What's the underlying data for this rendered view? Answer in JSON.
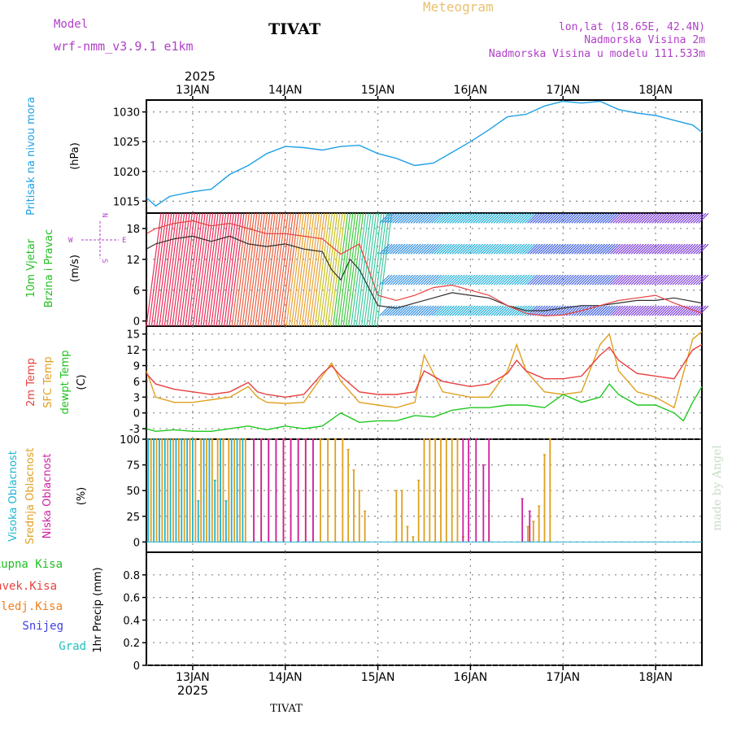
{
  "header": {
    "model_label": "Model",
    "model_name": "wrf-nmm_v3.9.1  e1km",
    "station": "TIVAT",
    "meteogram_label": "Meteogram",
    "lonlat": "lon,lat (18.65E, 42.4N)",
    "elevation": "Nadmorska Visina 2m",
    "model_elevation": "Nadmorska Visina u modelu 111.533m",
    "footer_station": "TIVAT",
    "signature": "made by Angel"
  },
  "colors": {
    "pressure": "#1ea0e6",
    "temp_2m": "#e84040",
    "temp_sfc": "#e0a020",
    "temp_dew": "#20c820",
    "cloud_high": "#20b4d0",
    "cloud_mid": "#e0a020",
    "cloud_low": "#d020a0",
    "grid": "#888888"
  },
  "time_axis": {
    "top_year": "2025",
    "bottom_year": "2025",
    "day_labels": [
      "13JAN",
      "14JAN",
      "15JAN",
      "16JAN",
      "17JAN",
      "18JAN"
    ],
    "x_range_days": [
      12.5,
      18.5
    ]
  },
  "panels": {
    "pressure": {
      "title": "Pritisak na nivou mora",
      "unit": "(hPa)",
      "ticks": [
        "1015",
        "1020",
        "1025",
        "1030"
      ]
    },
    "wind": {
      "title1": "10m Vjetar",
      "title2": "Brzina i Pravac",
      "unit": "(m/s)",
      "ticks": [
        "0",
        "6",
        "12",
        "18"
      ],
      "compass_n": "N",
      "compass_s": "S",
      "compass_w": "W",
      "compass_e": "E"
    },
    "temp": {
      "title1": "2m Temp",
      "title2": "SFC Temp",
      "title3": "dewpt Temp",
      "unit": "(C)",
      "ticks": [
        "-3",
        "0",
        "3",
        "6",
        "9",
        "12",
        "15"
      ]
    },
    "cloud": {
      "title1": "Visoka Oblacnost",
      "title2": "Srednja Oblacnost",
      "title3": "Niska Oblacnost",
      "unit": "(%)",
      "ticks": [
        "0",
        "25",
        "50",
        "75",
        "100"
      ]
    },
    "precip": {
      "unit": "1hr Precip (mm)",
      "ticks": [
        "0",
        "0.2",
        "0.4",
        "0.6",
        "0.8"
      ],
      "legend": [
        "Ukupna Kisa",
        "Konvek.Kisa",
        "Zaledj.Kisa",
        "Snijeg",
        "Grad"
      ],
      "legend_colors": [
        "#20c020",
        "#e84040",
        "#f08020",
        "#4040e0",
        "#20c0c0"
      ]
    }
  },
  "chart_data": [
    {
      "type": "line",
      "title": "Pritisak na nivou mora",
      "ylabel": "(hPa)",
      "ylim": [
        1013,
        1032
      ],
      "x_unit": "day of January 2025",
      "series": [
        {
          "name": "Pritisak na nivou mora",
          "x": [
            12.5,
            12.6,
            12.75,
            13.0,
            13.2,
            13.4,
            13.6,
            13.8,
            14.0,
            14.2,
            14.4,
            14.6,
            14.8,
            15.0,
            15.2,
            15.4,
            15.6,
            15.8,
            16.0,
            16.2,
            16.4,
            16.6,
            16.8,
            17.0,
            17.2,
            17.4,
            17.6,
            17.8,
            18.0,
            18.2,
            18.4,
            18.5
          ],
          "y": [
            1015.6,
            1014.2,
            1015.8,
            1016.6,
            1017.0,
            1019.5,
            1021.0,
            1023.0,
            1024.2,
            1024.0,
            1023.6,
            1024.2,
            1024.4,
            1023.0,
            1022.2,
            1021.0,
            1021.4,
            1023.2,
            1025.0,
            1027.0,
            1029.2,
            1029.6,
            1031.0,
            1031.8,
            1031.5,
            1031.8,
            1030.4,
            1029.8,
            1029.4,
            1028.6,
            1027.8,
            1026.6
          ]
        }
      ]
    },
    {
      "type": "line",
      "title": "10m Vjetar Brzina i Pravac",
      "ylabel": "(m/s)",
      "ylim": [
        -1,
        21
      ],
      "x_unit": "day of January 2025",
      "series": [
        {
          "name": "Brzina",
          "x": [
            12.5,
            12.6,
            12.8,
            13.0,
            13.2,
            13.4,
            13.6,
            13.8,
            14.0,
            14.2,
            14.4,
            14.5,
            14.6,
            14.7,
            14.8,
            15.0,
            15.2,
            15.4,
            15.6,
            15.8,
            16.0,
            16.2,
            16.4,
            16.6,
            16.8,
            17.0,
            17.2,
            17.4,
            17.6,
            17.8,
            18.0,
            18.2,
            18.5
          ],
          "y": [
            14,
            15,
            16,
            16.5,
            15.5,
            16.5,
            15,
            14.5,
            15,
            14,
            13.5,
            10,
            8,
            12,
            10,
            3,
            2.5,
            3.5,
            4.5,
            5.5,
            5,
            4.5,
            3,
            2,
            2,
            2.5,
            3,
            3,
            3.5,
            4,
            4,
            4.5,
            3.5
          ]
        },
        {
          "name": "Udari",
          "x": [
            12.5,
            12.6,
            12.8,
            13.0,
            13.2,
            13.4,
            13.6,
            13.8,
            14.0,
            14.2,
            14.4,
            14.6,
            14.8,
            15.0,
            15.2,
            15.4,
            15.6,
            15.8,
            16.0,
            16.2,
            16.4,
            16.6,
            16.8,
            17.0,
            17.2,
            17.4,
            17.6,
            17.8,
            18.0,
            18.2,
            18.5
          ],
          "y": [
            17,
            18,
            19,
            19.5,
            18.5,
            19,
            18,
            17,
            17,
            16.5,
            16,
            13,
            15,
            5,
            4,
            5,
            6.5,
            7,
            6,
            5,
            3,
            1.5,
            1,
            1.2,
            2,
            3,
            4,
            4.5,
            5,
            3.5,
            1.5
          ]
        }
      ]
    },
    {
      "type": "line",
      "title": "2m Temp / SFC Temp / dewpt Temp",
      "ylabel": "(C)",
      "ylim": [
        -5,
        16.5
      ],
      "x_unit": "day of January 2025",
      "series": [
        {
          "name": "2m Temp",
          "x": [
            12.5,
            12.6,
            12.8,
            13.0,
            13.2,
            13.4,
            13.6,
            13.7,
            13.8,
            14.0,
            14.2,
            14.4,
            14.5,
            14.6,
            14.8,
            15.0,
            15.2,
            15.4,
            15.5,
            15.7,
            16.0,
            16.2,
            16.4,
            16.5,
            16.6,
            16.8,
            17.0,
            17.2,
            17.4,
            17.5,
            17.6,
            17.8,
            18.0,
            18.2,
            18.4,
            18.5
          ],
          "y": [
            7.5,
            5.5,
            4.5,
            4,
            3.5,
            4,
            5.8,
            4,
            3.5,
            3,
            3.5,
            7.5,
            9,
            7,
            4,
            3.5,
            3.5,
            4,
            8,
            6,
            5,
            5.5,
            7.5,
            10,
            8,
            6.5,
            6.5,
            7,
            11,
            12.5,
            10,
            7.5,
            7,
            6.5,
            12,
            13
          ]
        },
        {
          "name": "SFC Temp",
          "x": [
            12.5,
            12.6,
            12.8,
            13.0,
            13.2,
            13.4,
            13.6,
            13.7,
            13.8,
            14.0,
            14.2,
            14.4,
            14.5,
            14.6,
            14.8,
            15.0,
            15.2,
            15.4,
            15.5,
            15.7,
            16.0,
            16.2,
            16.4,
            16.5,
            16.6,
            16.8,
            17.0,
            17.2,
            17.4,
            17.5,
            17.6,
            17.8,
            18.0,
            18.2,
            18.4,
            18.5
          ],
          "y": [
            8,
            3,
            2,
            2,
            2.5,
            3,
            5,
            3,
            2,
            1.8,
            2,
            7,
            9.5,
            6,
            2,
            1.5,
            1,
            2,
            11,
            4,
            3,
            3,
            8,
            13,
            8,
            4,
            3.5,
            4,
            13,
            15,
            8,
            4,
            3,
            1,
            14,
            15.5
          ]
        },
        {
          "name": "dewpt Temp",
          "x": [
            12.5,
            12.6,
            12.8,
            13.0,
            13.2,
            13.4,
            13.6,
            13.8,
            14.0,
            14.2,
            14.4,
            14.6,
            14.8,
            15.0,
            15.2,
            15.4,
            15.6,
            15.8,
            16.0,
            16.2,
            16.4,
            16.6,
            16.8,
            17.0,
            17.2,
            17.4,
            17.5,
            17.6,
            17.8,
            18.0,
            18.2,
            18.3,
            18.4,
            18.5
          ],
          "y": [
            -3,
            -3.5,
            -3.2,
            -3.5,
            -3.5,
            -3,
            -2.5,
            -3.2,
            -2.5,
            -3,
            -2.5,
            0,
            -1.8,
            -1.5,
            -1.5,
            -0.5,
            -0.8,
            0.5,
            1,
            1,
            1.5,
            1.5,
            1,
            3.5,
            2,
            3,
            5.5,
            3.5,
            1.5,
            1.5,
            0,
            -1.5,
            2,
            5
          ]
        }
      ]
    },
    {
      "type": "bar",
      "title": "Visoka / Srednja / Niska Oblacnost",
      "ylabel": "(%)",
      "ylim": [
        0,
        100
      ],
      "x_unit": "day of January 2025",
      "series": [
        {
          "name": "Visoka Oblacnost",
          "x": [
            12.52,
            12.58,
            12.64,
            12.7,
            12.76,
            12.82,
            12.88,
            12.94,
            13.0,
            13.06,
            13.12,
            13.18,
            13.24,
            13.3,
            13.36,
            13.42,
            13.48,
            13.54
          ],
          "y": [
            100,
            100,
            100,
            100,
            100,
            100,
            100,
            100,
            100,
            40,
            100,
            100,
            60,
            100,
            40,
            100,
            100,
            100
          ]
        },
        {
          "name": "Srednja Oblacnost",
          "x": [
            12.55,
            12.61,
            12.67,
            12.73,
            12.79,
            12.85,
            12.91,
            12.97,
            13.03,
            13.09,
            13.15,
            13.21,
            13.27,
            13.33,
            13.39,
            13.45,
            13.51,
            13.57,
            13.66,
            13.74,
            13.82,
            13.9,
            13.98,
            14.06,
            14.14,
            14.22,
            14.3,
            14.38,
            14.46,
            14.54,
            14.62,
            14.68,
            14.74,
            14.8,
            14.86,
            15.2,
            15.26,
            15.32,
            15.38,
            15.44,
            15.5,
            15.56,
            15.62,
            15.68,
            15.74,
            15.8,
            15.86,
            15.92,
            16.2,
            16.62,
            16.68,
            16.74,
            16.8,
            16.86
          ],
          "y": [
            100,
            100,
            100,
            100,
            100,
            100,
            100,
            100,
            100,
            100,
            100,
            100,
            100,
            100,
            100,
            100,
            100,
            100,
            100,
            100,
            100,
            100,
            100,
            100,
            100,
            100,
            100,
            100,
            100,
            100,
            100,
            90,
            70,
            50,
            30,
            50,
            50,
            15,
            5,
            60,
            100,
            100,
            100,
            100,
            100,
            100,
            100,
            5,
            40,
            15,
            20,
            35,
            85,
            100
          ]
        },
        {
          "name": "Niska Oblacnost",
          "x": [
            13.66,
            13.74,
            13.82,
            13.9,
            13.98,
            14.06,
            14.14,
            14.22,
            14.3,
            15.92,
            15.98,
            16.06,
            16.14,
            16.2,
            16.56,
            16.64
          ],
          "y": [
            100,
            100,
            100,
            100,
            100,
            100,
            100,
            100,
            100,
            100,
            100,
            100,
            75,
            100,
            42,
            30
          ]
        }
      ]
    },
    {
      "type": "line",
      "title": "",
      "ylabel": "1hr Precip (mm)",
      "ylim": [
        0,
        1.0
      ],
      "x_unit": "day of January 2025",
      "series": [
        {
          "name": "Ukupna Kisa",
          "x": [
            12.5,
            18.5
          ],
          "y": [
            0,
            0
          ]
        },
        {
          "name": "Konvek.Kisa",
          "x": [
            12.5,
            18.5
          ],
          "y": [
            0,
            0
          ]
        },
        {
          "name": "Zaledj.Kisa",
          "x": [
            12.5,
            18.5
          ],
          "y": [
            0,
            0
          ]
        },
        {
          "name": "Snijeg",
          "x": [
            12.5,
            18.5
          ],
          "y": [
            0,
            0
          ]
        },
        {
          "name": "Grad",
          "x": [
            12.5,
            18.5
          ],
          "y": [
            0,
            0
          ]
        }
      ]
    }
  ]
}
